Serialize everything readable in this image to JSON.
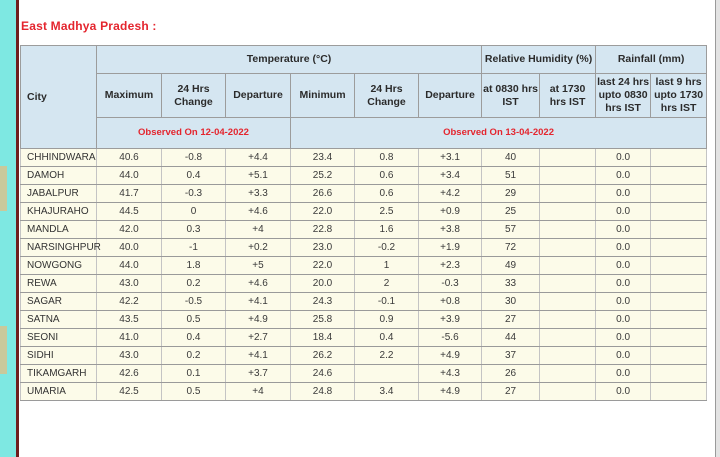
{
  "page": {
    "title": "East Madhya Pradesh :"
  },
  "colors": {
    "cyan_strip": "#7EE8E2",
    "tan_block": "#C9C99B",
    "maroon_line": "#6E1C1C",
    "title_red": "#E4252E",
    "header_bg": "#D5E6F1",
    "row_cream": "#FCFBE9"
  },
  "table": {
    "groups": [
      {
        "label": "Temperature (°C)",
        "span": 6
      },
      {
        "label": "Relative Humidity (%)",
        "span": 2
      },
      {
        "label": "Rainfall (mm)",
        "span": 2
      }
    ],
    "columns": [
      "City",
      "Maximum",
      "24 Hrs Change",
      "Departure",
      "Minimum",
      "24 Hrs Change",
      "Departure",
      "at 0830 hrs IST",
      "at 1730 hrs IST",
      "last 24 hrs upto 0830 hrs IST",
      "last 9 hrs upto 1730 hrs IST"
    ],
    "observed": [
      {
        "label": "Observed On 12-04-2022",
        "span": 3
      },
      {
        "label": "Observed On 13-04-2022",
        "span": 7
      }
    ],
    "rows": [
      [
        "CHHINDWARA",
        "40.6",
        "-0.8",
        "+4.4",
        "23.4",
        "0.8",
        "+3.1",
        "40",
        "",
        "0.0",
        ""
      ],
      [
        "DAMOH",
        "44.0",
        "0.4",
        "+5.1",
        "25.2",
        "0.6",
        "+3.4",
        "51",
        "",
        "0.0",
        ""
      ],
      [
        "JABALPUR",
        "41.7",
        "-0.3",
        "+3.3",
        "26.6",
        "0.6",
        "+4.2",
        "29",
        "",
        "0.0",
        ""
      ],
      [
        "KHAJURAHO",
        "44.5",
        "0",
        "+4.6",
        "22.0",
        "2.5",
        "+0.9",
        "25",
        "",
        "0.0",
        ""
      ],
      [
        "MANDLA",
        "42.0",
        "0.3",
        "+4",
        "22.8",
        "1.6",
        "+3.8",
        "57",
        "",
        "0.0",
        ""
      ],
      [
        "NARSINGHPUR",
        "40.0",
        "-1",
        "+0.2",
        "23.0",
        "-0.2",
        "+1.9",
        "72",
        "",
        "0.0",
        ""
      ],
      [
        "NOWGONG",
        "44.0",
        "1.8",
        "+5",
        "22.0",
        "1",
        "+2.3",
        "49",
        "",
        "0.0",
        ""
      ],
      [
        "REWA",
        "43.0",
        "0.2",
        "+4.6",
        "20.0",
        "2",
        "-0.3",
        "33",
        "",
        "0.0",
        ""
      ],
      [
        "SAGAR",
        "42.2",
        "-0.5",
        "+4.1",
        "24.3",
        "-0.1",
        "+0.8",
        "30",
        "",
        "0.0",
        ""
      ],
      [
        "SATNA",
        "43.5",
        "0.5",
        "+4.9",
        "25.8",
        "0.9",
        "+3.9",
        "27",
        "",
        "0.0",
        ""
      ],
      [
        "SEONI",
        "41.0",
        "0.4",
        "+2.7",
        "18.4",
        "0.4",
        "-5.6",
        "44",
        "",
        "0.0",
        ""
      ],
      [
        "SIDHI",
        "43.0",
        "0.2",
        "+4.1",
        "26.2",
        "2.2",
        "+4.9",
        "37",
        "",
        "0.0",
        ""
      ],
      [
        "TIKAMGARH",
        "42.6",
        "0.1",
        "+3.7",
        "24.6",
        "",
        "+4.3",
        "26",
        "",
        "0.0",
        ""
      ],
      [
        "UMARIA",
        "42.5",
        "0.5",
        "+4",
        "24.8",
        "3.4",
        "+4.9",
        "27",
        "",
        "0.0",
        ""
      ]
    ]
  }
}
